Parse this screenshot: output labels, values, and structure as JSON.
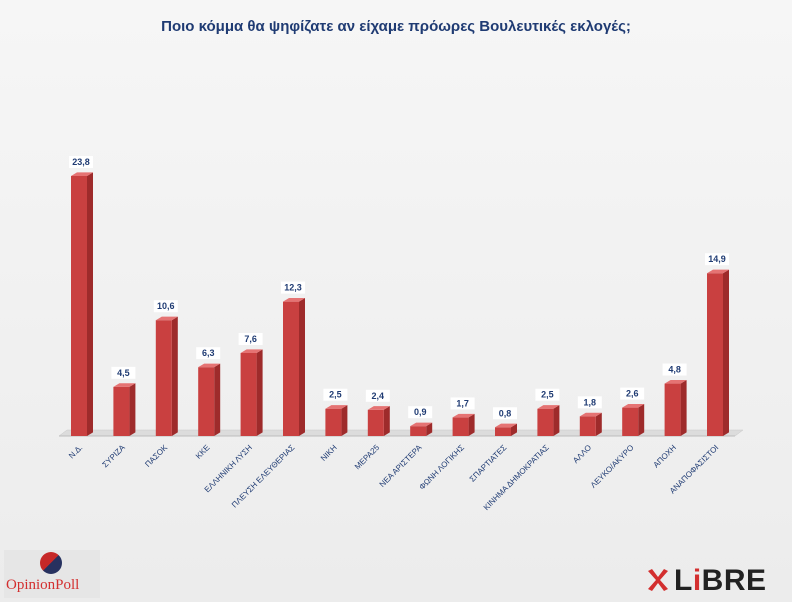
{
  "chart_data": {
    "type": "bar",
    "title": "Ποιο κόμμα θα ψηφίζατε αν είχαμε πρόωρες Βουλευτικές εκλογές;",
    "categories": [
      "Ν.Δ.",
      "ΣΥΡΙΖΑ",
      "ΠΑΣΟΚ",
      "ΚΚΕ",
      "ΕΛΛΗΝΙΚΗ ΛΥΣΗ",
      "ΠΛΕΥΣΗ ΕΛΕΥΘΕΡΙΑΣ",
      "ΝΙΚΗ",
      "ΜΕΡΑ25",
      "ΝΕΑ ΑΡΙΣΤΕΡΑ",
      "ΦΩΝΗ ΛΟΓΙΚΗΣ",
      "ΣΠΑΡΤΙΑΤΕΣ",
      "ΚΙΝΗΜΑ ΔΗΜΟΚΡΑΤΙΑΣ",
      "ΑΛΛΟ",
      "ΛΕΥΚΟ/ΑΚΥΡΟ",
      "ΑΠΟΧΗ",
      "ΑΝΑΠΟΦΑΣΙΣΤΟΙ"
    ],
    "values": [
      23.8,
      4.5,
      10.6,
      6.3,
      7.6,
      12.3,
      2.5,
      2.4,
      0.9,
      1.7,
      0.8,
      2.5,
      1.8,
      2.6,
      4.8,
      14.9
    ],
    "value_labels": [
      "23,8",
      "4,5",
      "10,6",
      "6,3",
      "7,6",
      "12,3",
      "2,5",
      "2,4",
      "0,9",
      "1,7",
      "0,8",
      "2,5",
      "1,8",
      "2,6",
      "4,8",
      "14,9"
    ],
    "ylim": [
      0,
      25
    ],
    "grid": false,
    "legend": "none",
    "bar_color": "#c94040",
    "bar_side_color": "#9e2b2b",
    "bar_top_color": "#e57373"
  },
  "logos": {
    "left_text": "OpinionPoll",
    "right_text_a": "L",
    "right_text_b": "i",
    "right_text_c": "BRE"
  }
}
